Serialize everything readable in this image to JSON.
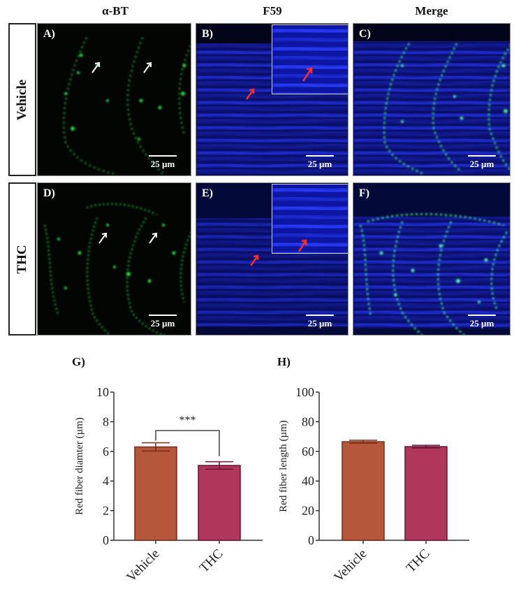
{
  "figure": {
    "column_titles": [
      "α-BT",
      "F59",
      "Merge"
    ],
    "row_labels": [
      "Vehicle",
      "THC"
    ],
    "panels": [
      {
        "id": "A",
        "label": "A)",
        "row": "Vehicle",
        "stain": "α-BT",
        "channel": "green",
        "scale": "25 µm",
        "arrows": "white",
        "inset": false
      },
      {
        "id": "B",
        "label": "B)",
        "row": "Vehicle",
        "stain": "F59",
        "channel": "blue",
        "scale": "25 µm",
        "arrows": "red",
        "inset": true
      },
      {
        "id": "C",
        "label": "C)",
        "row": "Vehicle",
        "stain": "Merge",
        "channel": "merge",
        "scale": "25 µm",
        "arrows": "none",
        "inset": false
      },
      {
        "id": "D",
        "label": "D)",
        "row": "THC",
        "stain": "α-BT",
        "channel": "green",
        "scale": "25 µm",
        "arrows": "white",
        "inset": false
      },
      {
        "id": "E",
        "label": "E)",
        "row": "THC",
        "stain": "F59",
        "channel": "blue",
        "scale": "25 µm",
        "arrows": "red",
        "inset": true
      },
      {
        "id": "F",
        "label": "F)",
        "row": "THC",
        "stain": "Merge",
        "channel": "merge",
        "scale": "25 µm",
        "arrows": "none",
        "inset": false
      }
    ],
    "colors": {
      "vehicle_bar": "#b5573a",
      "thc_bar": "#b0365c",
      "vehicle_edge": "#7a2a16",
      "thc_edge": "#6a1434",
      "green": "#22c43a",
      "blue": "#1a22c8",
      "arrow_red": "#ff2a2a"
    }
  },
  "chart_data": [
    {
      "panel": "G)",
      "type": "bar",
      "title": "",
      "categories": [
        "Vehicle",
        "THC"
      ],
      "values": [
        6.3,
        5.05
      ],
      "errors": [
        0.28,
        0.25
      ],
      "xlabel": "",
      "ylabel": "Red fiber diamter (µm)",
      "ylim": [
        0,
        10
      ],
      "yticks": [
        "0",
        "2",
        "4",
        "6",
        "8",
        "10"
      ],
      "significance": {
        "between": [
          "Vehicle",
          "THC"
        ],
        "label": "***"
      },
      "grid": false,
      "legend": "none"
    },
    {
      "panel": "H)",
      "type": "bar",
      "title": "",
      "categories": [
        "Vehicle",
        "THC"
      ],
      "values": [
        66.5,
        63.2
      ],
      "errors": [
        1.0,
        0.9
      ],
      "xlabel": "",
      "ylabel": "Red fiber length (µm)",
      "ylim": [
        0,
        100
      ],
      "yticks": [
        "0",
        "20",
        "40",
        "60",
        "80",
        "100"
      ],
      "grid": false,
      "legend": "none"
    }
  ]
}
